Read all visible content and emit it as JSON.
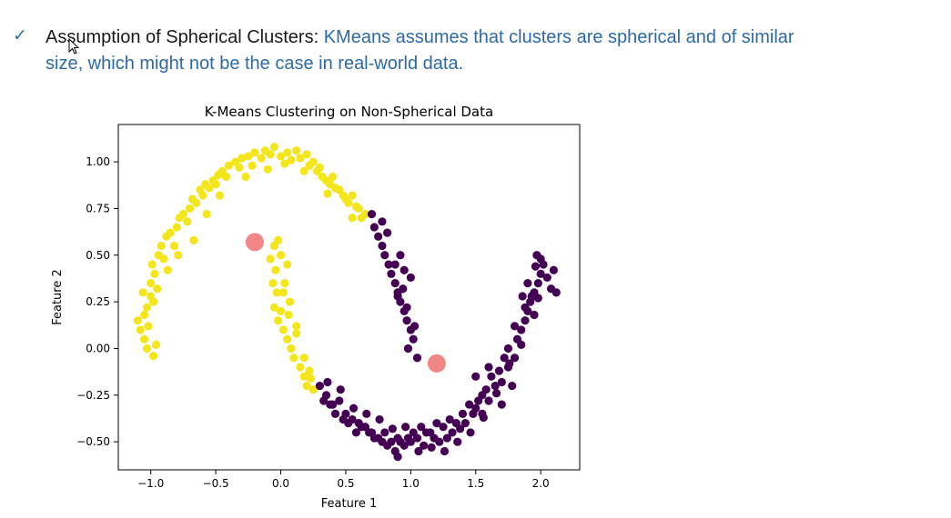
{
  "bullet": {
    "icon": "check-icon",
    "term": "Assumption of Spherical Clusters:",
    "description": " KMeans assumes that clusters are spherical and of similar size, which might not be the case in real-world data."
  },
  "colors": {
    "term": "#1a1a1a",
    "description": "#2e6aa6",
    "check": "#2e74b5",
    "cluster_yellow": "#f4e61c",
    "cluster_purple": "#440154",
    "centroid": "#f08080"
  },
  "chart_data": {
    "type": "scatter",
    "title": "K-Means Clustering on Non-Spherical Data",
    "xlabel": "Feature 1",
    "ylabel": "Feature 2",
    "xlim": [
      -1.25,
      2.3
    ],
    "ylim": [
      -0.65,
      1.2
    ],
    "xticks": [
      -1.0,
      -0.5,
      0.0,
      0.5,
      1.0,
      1.5,
      2.0
    ],
    "xtick_labels": [
      "−1.0",
      "−0.5",
      "0.0",
      "0.5",
      "1.0",
      "1.5",
      "2.0"
    ],
    "yticks": [
      -0.5,
      -0.25,
      0.0,
      0.25,
      0.5,
      0.75,
      1.0
    ],
    "ytick_labels": [
      "−0.50",
      "−0.25",
      "0.00",
      "0.25",
      "0.50",
      "0.75",
      "1.00"
    ],
    "grid": false,
    "series": [
      {
        "color": "#f4e61c",
        "points": [
          [
            -1.1,
            0.15
          ],
          [
            -1.08,
            0.1
          ],
          [
            -1.05,
            0.18
          ],
          [
            -1.02,
            0.12
          ],
          [
            -1.06,
            0.3
          ],
          [
            -1.0,
            0.28
          ],
          [
            -1.03,
            0.22
          ],
          [
            -0.98,
            0.25
          ],
          [
            -1.0,
            0.35
          ],
          [
            -0.97,
            0.4
          ],
          [
            -0.95,
            0.32
          ],
          [
            -0.99,
            0.45
          ],
          [
            -0.94,
            0.5
          ],
          [
            -0.9,
            0.48
          ],
          [
            -0.92,
            0.55
          ],
          [
            -0.88,
            0.6
          ],
          [
            -0.85,
            0.62
          ],
          [
            -0.82,
            0.55
          ],
          [
            -0.8,
            0.65
          ],
          [
            -0.78,
            0.7
          ],
          [
            -0.75,
            0.72
          ],
          [
            -0.72,
            0.68
          ],
          [
            -0.7,
            0.75
          ],
          [
            -0.68,
            0.8
          ],
          [
            -0.65,
            0.78
          ],
          [
            -0.62,
            0.85
          ],
          [
            -0.6,
            0.82
          ],
          [
            -0.58,
            0.88
          ],
          [
            -0.55,
            0.86
          ],
          [
            -0.52,
            0.9
          ],
          [
            -0.5,
            0.88
          ],
          [
            -0.48,
            0.93
          ],
          [
            -0.45,
            0.95
          ],
          [
            -0.42,
            0.92
          ],
          [
            -0.4,
            0.98
          ],
          [
            -0.35,
            1.0
          ],
          [
            -0.32,
            0.97
          ],
          [
            -0.3,
            1.02
          ],
          [
            -0.25,
            1.03
          ],
          [
            -0.22,
            0.98
          ],
          [
            -0.2,
            1.05
          ],
          [
            -0.15,
            1.02
          ],
          [
            -0.12,
            1.06
          ],
          [
            -0.08,
            1.04
          ],
          [
            -0.05,
            1.08
          ],
          [
            0.0,
            1.03
          ],
          [
            0.05,
            1.05
          ],
          [
            0.08,
            1.01
          ],
          [
            0.12,
            1.06
          ],
          [
            0.15,
            1.02
          ],
          [
            0.2,
            1.04
          ],
          [
            0.22,
            0.98
          ],
          [
            0.25,
            1.0
          ],
          [
            0.28,
            0.95
          ],
          [
            0.3,
            0.97
          ],
          [
            0.32,
            0.92
          ],
          [
            0.35,
            0.9
          ],
          [
            0.38,
            0.88
          ],
          [
            0.4,
            0.92
          ],
          [
            0.42,
            0.86
          ],
          [
            0.45,
            0.85
          ],
          [
            0.48,
            0.82
          ],
          [
            0.5,
            0.8
          ],
          [
            0.52,
            0.78
          ],
          [
            0.55,
            0.82
          ],
          [
            0.58,
            0.76
          ],
          [
            0.6,
            0.75
          ],
          [
            0.62,
            0.7
          ],
          [
            0.65,
            0.72
          ],
          [
            -1.05,
            0.05
          ],
          [
            -1.03,
            0.0
          ],
          [
            -0.98,
            -0.04
          ],
          [
            -0.96,
            0.02
          ],
          [
            -0.87,
            0.42
          ],
          [
            -0.79,
            0.5
          ],
          [
            -0.67,
            0.58
          ],
          [
            -0.57,
            0.72
          ],
          [
            -0.47,
            0.82
          ],
          [
            -0.27,
            0.92
          ],
          [
            -0.1,
            0.96
          ],
          [
            0.03,
            0.99
          ],
          [
            0.18,
            0.95
          ],
          [
            0.36,
            0.83
          ],
          [
            0.55,
            0.7
          ],
          [
            -0.05,
            0.55
          ],
          [
            -0.08,
            0.48
          ],
          [
            -0.04,
            0.42
          ],
          [
            -0.06,
            0.35
          ],
          [
            -0.03,
            0.3
          ],
          [
            -0.05,
            0.22
          ],
          [
            0.0,
            0.2
          ],
          [
            -0.02,
            0.15
          ],
          [
            0.02,
            0.1
          ],
          [
            0.05,
            0.05
          ],
          [
            0.08,
            0.0
          ],
          [
            0.1,
            -0.05
          ],
          [
            0.15,
            -0.1
          ],
          [
            0.18,
            -0.15
          ],
          [
            0.2,
            -0.2
          ],
          [
            0.25,
            -0.22
          ],
          [
            0.22,
            -0.12
          ],
          [
            0.12,
            0.08
          ],
          [
            0.07,
            0.25
          ],
          [
            0.03,
            0.35
          ],
          [
            0.05,
            0.45
          ],
          [
            0.0,
            0.5
          ],
          [
            -0.02,
            0.58
          ],
          [
            0.02,
            0.3
          ],
          [
            0.06,
            0.18
          ],
          [
            0.12,
            0.12
          ],
          [
            0.18,
            -0.05
          ],
          [
            0.23,
            -0.16
          ]
        ]
      },
      {
        "color": "#440154",
        "points": [
          [
            0.7,
            0.72
          ],
          [
            0.72,
            0.65
          ],
          [
            0.75,
            0.6
          ],
          [
            0.78,
            0.55
          ],
          [
            0.8,
            0.5
          ],
          [
            0.83,
            0.45
          ],
          [
            0.85,
            0.4
          ],
          [
            0.88,
            0.35
          ],
          [
            0.9,
            0.3
          ],
          [
            0.92,
            0.25
          ],
          [
            0.95,
            0.2
          ],
          [
            0.97,
            0.15
          ],
          [
            1.0,
            0.1
          ],
          [
            1.02,
            0.05
          ],
          [
            0.98,
            0.0
          ],
          [
            1.05,
            -0.05
          ],
          [
            1.0,
            0.38
          ],
          [
            0.95,
            0.42
          ],
          [
            0.92,
            0.5
          ],
          [
            0.88,
            0.45
          ],
          [
            0.82,
            0.62
          ],
          [
            0.78,
            0.68
          ],
          [
            0.9,
            0.28
          ],
          [
            0.94,
            0.32
          ],
          [
            0.97,
            0.22
          ],
          [
            1.03,
            0.12
          ],
          [
            0.3,
            -0.2
          ],
          [
            0.35,
            -0.25
          ],
          [
            0.4,
            -0.3
          ],
          [
            0.45,
            -0.28
          ],
          [
            0.5,
            -0.35
          ],
          [
            0.55,
            -0.38
          ],
          [
            0.6,
            -0.4
          ],
          [
            0.65,
            -0.42
          ],
          [
            0.7,
            -0.45
          ],
          [
            0.75,
            -0.48
          ],
          [
            0.8,
            -0.45
          ],
          [
            0.85,
            -0.5
          ],
          [
            0.9,
            -0.48
          ],
          [
            0.95,
            -0.52
          ],
          [
            1.0,
            -0.5
          ],
          [
            1.05,
            -0.48
          ],
          [
            1.1,
            -0.52
          ],
          [
            1.15,
            -0.45
          ],
          [
            1.2,
            -0.4
          ],
          [
            1.25,
            -0.42
          ],
          [
            1.3,
            -0.38
          ],
          [
            1.35,
            -0.4
          ],
          [
            1.4,
            -0.35
          ],
          [
            1.45,
            -0.3
          ],
          [
            1.5,
            -0.32
          ],
          [
            1.55,
            -0.25
          ],
          [
            1.6,
            -0.28
          ],
          [
            1.65,
            -0.2
          ],
          [
            1.7,
            -0.18
          ],
          [
            1.75,
            -0.1
          ],
          [
            1.8,
            -0.05
          ],
          [
            1.82,
            0.05
          ],
          [
            1.85,
            0.1
          ],
          [
            1.88,
            0.15
          ],
          [
            1.9,
            0.2
          ],
          [
            1.92,
            0.25
          ],
          [
            1.95,
            0.3
          ],
          [
            1.98,
            0.35
          ],
          [
            2.0,
            0.4
          ],
          [
            2.02,
            0.45
          ],
          [
            1.97,
            0.5
          ],
          [
            2.05,
            0.38
          ],
          [
            2.08,
            0.32
          ],
          [
            2.1,
            0.42
          ],
          [
            1.93,
            0.28
          ],
          [
            1.88,
            0.22
          ],
          [
            1.8,
            0.12
          ],
          [
            1.75,
            0.0
          ],
          [
            1.72,
            -0.05
          ],
          [
            1.68,
            -0.12
          ],
          [
            1.62,
            -0.15
          ],
          [
            1.58,
            -0.22
          ],
          [
            1.52,
            -0.28
          ],
          [
            1.48,
            -0.35
          ],
          [
            1.42,
            -0.4
          ],
          [
            1.38,
            -0.43
          ],
          [
            1.32,
            -0.45
          ],
          [
            1.28,
            -0.48
          ],
          [
            1.22,
            -0.5
          ],
          [
            1.18,
            -0.48
          ],
          [
            1.12,
            -0.45
          ],
          [
            1.08,
            -0.42
          ],
          [
            1.02,
            -0.45
          ],
          [
            0.98,
            -0.48
          ],
          [
            0.92,
            -0.5
          ],
          [
            0.88,
            -0.55
          ],
          [
            0.82,
            -0.52
          ],
          [
            0.78,
            -0.5
          ],
          [
            0.72,
            -0.48
          ],
          [
            0.68,
            -0.45
          ],
          [
            0.62,
            -0.42
          ],
          [
            0.58,
            -0.45
          ],
          [
            0.52,
            -0.4
          ],
          [
            0.48,
            -0.38
          ],
          [
            0.42,
            -0.35
          ],
          [
            0.38,
            -0.3
          ],
          [
            0.33,
            -0.28
          ],
          [
            1.5,
            -0.15
          ],
          [
            1.55,
            -0.35
          ],
          [
            1.6,
            -0.1
          ],
          [
            1.7,
            -0.3
          ],
          [
            1.78,
            -0.2
          ],
          [
            1.85,
            0.02
          ],
          [
            1.9,
            0.35
          ],
          [
            1.95,
            0.18
          ],
          [
            2.0,
            0.48
          ],
          [
            1.98,
            0.27
          ],
          [
            2.12,
            0.3
          ],
          [
            1.96,
            0.44
          ],
          [
            1.86,
            0.28
          ],
          [
            1.76,
            -0.08
          ],
          [
            1.66,
            -0.24
          ],
          [
            1.56,
            -0.37
          ],
          [
            1.46,
            -0.45
          ],
          [
            1.36,
            -0.5
          ],
          [
            1.26,
            -0.55
          ],
          [
            1.16,
            -0.53
          ],
          [
            1.06,
            -0.55
          ],
          [
            0.96,
            -0.42
          ],
          [
            0.86,
            -0.43
          ],
          [
            0.76,
            -0.38
          ],
          [
            0.66,
            -0.35
          ],
          [
            0.56,
            -0.32
          ],
          [
            0.46,
            -0.22
          ],
          [
            0.36,
            -0.18
          ],
          [
            0.9,
            -0.58
          ]
        ]
      }
    ],
    "centroids": {
      "color": "#f08080",
      "points": [
        [
          -0.2,
          0.57
        ],
        [
          1.2,
          -0.08
        ]
      ]
    }
  }
}
